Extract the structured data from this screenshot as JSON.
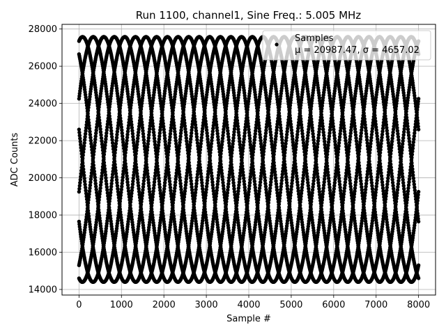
{
  "chart_data": {
    "type": "scatter",
    "title": "Run 1100, channel1, Sine Freq.: 5.005 MHz",
    "xlabel": "Sample #",
    "ylabel": "ADC Counts",
    "xlim": [
      -400,
      8400
    ],
    "ylim": [
      13700,
      28250
    ],
    "x_ticks": [
      0,
      1000,
      2000,
      3000,
      4000,
      5000,
      6000,
      7000,
      8000
    ],
    "y_ticks": [
      14000,
      16000,
      18000,
      20000,
      22000,
      24000,
      26000,
      28000
    ],
    "x_tick_labels": [
      "0",
      "1000",
      "2000",
      "3000",
      "4000",
      "5000",
      "6000",
      "7000",
      "8000"
    ],
    "y_tick_labels": [
      "14000",
      "16000",
      "18000",
      "20000",
      "22000",
      "24000",
      "26000",
      "28000"
    ],
    "grid": true,
    "legend_position": "top-right",
    "series": [
      {
        "name": "Samples",
        "stats_label": "μ = 20987.47, σ = 4657.02",
        "color": "#000000",
        "model": {
          "kind": "sine_phases",
          "mean": 20987.47,
          "amplitude": 6590,
          "period_samples": 2000,
          "phases_start_y": [
            27350,
            26650,
            24250,
            22600,
            19250,
            17650,
            15300,
            14600
          ],
          "x_range": [
            0,
            8000
          ]
        }
      }
    ]
  },
  "colors": {
    "background": "#ffffff",
    "grid": "#b0b0b0",
    "marker": "#000000",
    "legend_border": "#cccccc"
  }
}
